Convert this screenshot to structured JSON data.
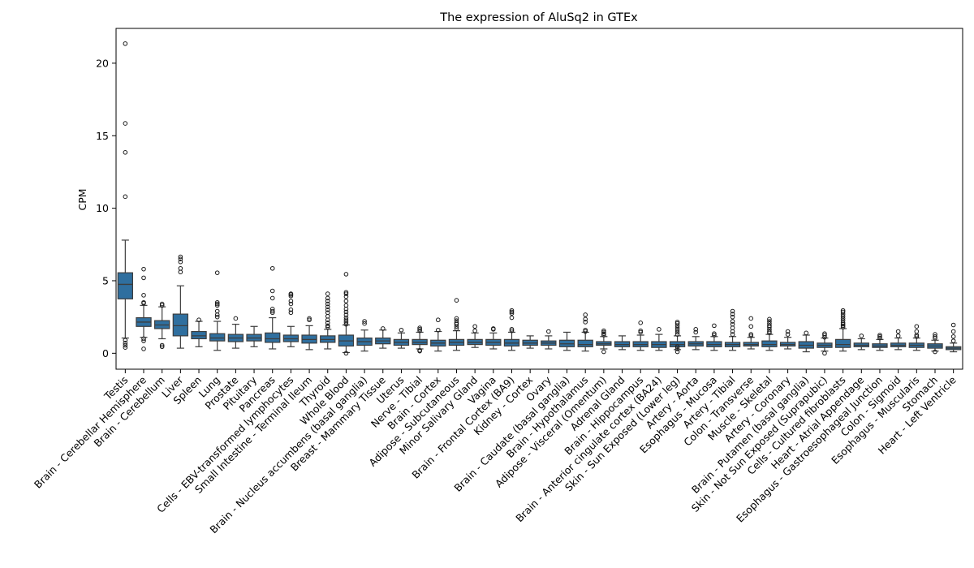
{
  "chart_data": {
    "type": "box",
    "title": "The expression of AluSq2 in GTEx",
    "xlabel": "",
    "ylabel": "CPM",
    "ylim": [
      -1.1,
      22.4
    ],
    "yticks": [
      0,
      5,
      10,
      15,
      20
    ],
    "grid": false,
    "box_color": "#2f6f9f",
    "categories": [
      "Testis",
      "Brain - Cerebellar Hemisphere",
      "Brain - Cerebellum",
      "Liver",
      "Spleen",
      "Lung",
      "Prostate",
      "Pituitary",
      "Pancreas",
      "Cells - EBV-transformed lymphocytes",
      "Small Intestine - Terminal Ileum",
      "Thyroid",
      "Whole Blood",
      "Brain - Nucleus accumbens (basal ganglia)",
      "Breast - Mammary Tissue",
      "Uterus",
      "Nerve - Tibial",
      "Brain - Cortex",
      "Adipose - Subcutaneous",
      "Minor Salivary Gland",
      "Vagina",
      "Brain - Frontal Cortex (BA9)",
      "Kidney - Cortex",
      "Ovary",
      "Brain - Caudate (basal ganglia)",
      "Brain - Hypothalamus",
      "Adipose - Visceral (Omentum)",
      "Adrenal Gland",
      "Brain - Hippocampus",
      "Brain - Anterior cingulate cortex (BA24)",
      "Skin - Sun Exposed (Lower leg)",
      "Artery - Aorta",
      "Esophagus - Mucosa",
      "Artery - Tibial",
      "Colon - Transverse",
      "Muscle - Skeletal",
      "Artery - Coronary",
      "Brain - Putamen (basal ganglia)",
      "Skin - Not Sun Exposed (Suprapubic)",
      "Cells - Cultured fibroblasts",
      "Heart - Atrial Appendage",
      "Esophagus - Gastroesophageal Junction",
      "Colon - Sigmoid",
      "Esophagus - Muscularis",
      "Stomach",
      "Heart - Left Ventricle"
    ],
    "boxes": [
      {
        "whisker_low": 1.05,
        "q1": 3.75,
        "median": 4.75,
        "q3": 5.55,
        "whisker_high": 7.8,
        "outliers": [
          21.35,
          15.85,
          13.85,
          10.8,
          0.9,
          0.7,
          0.55,
          0.4
        ]
      },
      {
        "whisker_low": 1.1,
        "q1": 1.85,
        "median": 2.15,
        "q3": 2.45,
        "whisker_high": 3.3,
        "outliers": [
          5.8,
          5.2,
          4.0,
          3.5,
          3.45,
          1.0,
          0.85,
          0.3
        ]
      },
      {
        "whisker_low": 1.0,
        "q1": 1.7,
        "median": 1.95,
        "q3": 2.25,
        "whisker_high": 3.2,
        "outliers": [
          3.4,
          3.3,
          0.55,
          0.45
        ]
      },
      {
        "whisker_low": 0.35,
        "q1": 1.2,
        "median": 1.9,
        "q3": 2.7,
        "whisker_high": 4.65,
        "outliers": [
          6.65,
          6.5,
          6.3,
          5.85,
          5.6
        ]
      },
      {
        "whisker_low": 0.45,
        "q1": 1.0,
        "median": 1.2,
        "q3": 1.5,
        "whisker_high": 2.2,
        "outliers": [
          2.3
        ]
      },
      {
        "whisker_low": 0.2,
        "q1": 0.85,
        "median": 1.05,
        "q3": 1.35,
        "whisker_high": 2.2,
        "outliers": [
          5.55,
          3.5,
          3.4,
          3.3,
          2.9,
          2.65,
          2.5
        ]
      },
      {
        "whisker_low": 0.35,
        "q1": 0.8,
        "median": 1.05,
        "q3": 1.3,
        "whisker_high": 2.0,
        "outliers": [
          2.4
        ]
      },
      {
        "whisker_low": 0.45,
        "q1": 0.85,
        "median": 1.05,
        "q3": 1.3,
        "whisker_high": 1.85,
        "outliers": []
      },
      {
        "whisker_low": 0.3,
        "q1": 0.75,
        "median": 1.0,
        "q3": 1.4,
        "whisker_high": 2.45,
        "outliers": [
          5.85,
          4.3,
          3.8,
          3.05,
          2.9,
          2.8
        ]
      },
      {
        "whisker_low": 0.45,
        "q1": 0.8,
        "median": 1.0,
        "q3": 1.25,
        "whisker_high": 1.85,
        "outliers": [
          4.1,
          4.05,
          3.95,
          3.6,
          3.4,
          3.0,
          2.8
        ]
      },
      {
        "whisker_low": 0.25,
        "q1": 0.7,
        "median": 0.95,
        "q3": 1.25,
        "whisker_high": 1.9,
        "outliers": [
          2.4,
          2.3
        ]
      },
      {
        "whisker_low": 0.3,
        "q1": 0.75,
        "median": 0.95,
        "q3": 1.2,
        "whisker_high": 1.65,
        "outliers": [
          4.1,
          3.8,
          3.6,
          3.4,
          3.2,
          3.0,
          2.8,
          2.55,
          2.3,
          2.1,
          1.9,
          1.8
        ]
      },
      {
        "whisker_low": 0.05,
        "q1": 0.5,
        "median": 0.85,
        "q3": 1.25,
        "whisker_high": 1.95,
        "outliers": [
          5.45,
          4.2,
          4.1,
          3.9,
          3.6,
          3.3,
          3.05,
          2.85,
          2.65,
          2.45,
          2.3,
          2.15,
          2.0,
          0.0
        ]
      },
      {
        "whisker_low": 0.15,
        "q1": 0.55,
        "median": 0.8,
        "q3": 1.05,
        "whisker_high": 1.6,
        "outliers": [
          2.2,
          2.05
        ]
      },
      {
        "whisker_low": 0.35,
        "q1": 0.65,
        "median": 0.85,
        "q3": 1.05,
        "whisker_high": 1.6,
        "outliers": [
          1.7
        ]
      },
      {
        "whisker_low": 0.35,
        "q1": 0.55,
        "median": 0.75,
        "q3": 0.95,
        "whisker_high": 1.4,
        "outliers": [
          1.6
        ]
      },
      {
        "whisker_low": 0.3,
        "q1": 0.6,
        "median": 0.75,
        "q3": 0.95,
        "whisker_high": 1.45,
        "outliers": [
          1.75,
          1.65,
          1.55,
          0.2,
          0.15
        ]
      },
      {
        "whisker_low": 0.15,
        "q1": 0.5,
        "median": 0.7,
        "q3": 0.9,
        "whisker_high": 1.5,
        "outliers": [
          2.3,
          1.6
        ]
      },
      {
        "whisker_low": 0.2,
        "q1": 0.55,
        "median": 0.75,
        "q3": 0.95,
        "whisker_high": 1.55,
        "outliers": [
          3.65,
          2.4,
          2.25,
          2.1,
          2.0,
          1.85,
          1.7
        ]
      },
      {
        "whisker_low": 0.4,
        "q1": 0.6,
        "median": 0.75,
        "q3": 0.95,
        "whisker_high": 1.4,
        "outliers": [
          1.85,
          1.55
        ]
      },
      {
        "whisker_low": 0.3,
        "q1": 0.55,
        "median": 0.75,
        "q3": 0.95,
        "whisker_high": 1.4,
        "outliers": [
          1.7,
          1.65
        ]
      },
      {
        "whisker_low": 0.2,
        "q1": 0.5,
        "median": 0.7,
        "q3": 0.95,
        "whisker_high": 1.45,
        "outliers": [
          2.95,
          2.85,
          2.75,
          2.45,
          1.65,
          1.55
        ]
      },
      {
        "whisker_low": 0.35,
        "q1": 0.55,
        "median": 0.7,
        "q3": 0.9,
        "whisker_high": 1.2,
        "outliers": []
      },
      {
        "whisker_low": 0.3,
        "q1": 0.55,
        "median": 0.7,
        "q3": 0.85,
        "whisker_high": 1.2,
        "outliers": [
          1.5
        ]
      },
      {
        "whisker_low": 0.2,
        "q1": 0.45,
        "median": 0.65,
        "q3": 0.9,
        "whisker_high": 1.45,
        "outliers": []
      },
      {
        "whisker_low": 0.15,
        "q1": 0.45,
        "median": 0.6,
        "q3": 0.9,
        "whisker_high": 1.45,
        "outliers": [
          2.65,
          2.35,
          2.15,
          1.6,
          1.5
        ]
      },
      {
        "whisker_low": 0.3,
        "q1": 0.55,
        "median": 0.65,
        "q3": 0.8,
        "whisker_high": 1.15,
        "outliers": [
          1.55,
          1.45,
          1.35,
          1.25,
          0.1
        ]
      },
      {
        "whisker_low": 0.25,
        "q1": 0.45,
        "median": 0.6,
        "q3": 0.8,
        "whisker_high": 1.2,
        "outliers": []
      },
      {
        "whisker_low": 0.2,
        "q1": 0.45,
        "median": 0.6,
        "q3": 0.8,
        "whisker_high": 1.25,
        "outliers": [
          2.1,
          1.55,
          1.45
        ]
      },
      {
        "whisker_low": 0.2,
        "q1": 0.4,
        "median": 0.6,
        "q3": 0.8,
        "whisker_high": 1.3,
        "outliers": [
          1.65
        ]
      },
      {
        "whisker_low": 0.25,
        "q1": 0.45,
        "median": 0.6,
        "q3": 0.8,
        "whisker_high": 1.2,
        "outliers": [
          2.15,
          2.05,
          1.9,
          1.75,
          1.6,
          1.45,
          1.3,
          0.45,
          0.3,
          0.1
        ]
      },
      {
        "whisker_low": 0.25,
        "q1": 0.5,
        "median": 0.65,
        "q3": 0.8,
        "whisker_high": 1.15,
        "outliers": [
          1.65,
          1.45
        ]
      },
      {
        "whisker_low": 0.2,
        "q1": 0.45,
        "median": 0.6,
        "q3": 0.8,
        "whisker_high": 1.15,
        "outliers": [
          1.9,
          1.35,
          1.25
        ]
      },
      {
        "whisker_low": 0.2,
        "q1": 0.45,
        "median": 0.6,
        "q3": 0.75,
        "whisker_high": 1.15,
        "outliers": [
          2.9,
          2.7,
          2.5,
          2.2,
          2.0,
          1.75,
          1.5,
          1.3
        ]
      },
      {
        "whisker_low": 0.3,
        "q1": 0.5,
        "median": 0.6,
        "q3": 0.75,
        "whisker_high": 1.1,
        "outliers": [
          2.4,
          1.85,
          1.3,
          1.2
        ]
      },
      {
        "whisker_low": 0.2,
        "q1": 0.45,
        "median": 0.6,
        "q3": 0.85,
        "whisker_high": 1.3,
        "outliers": [
          2.35,
          2.2,
          2.05,
          1.9,
          1.8,
          1.65,
          1.5,
          1.4
        ]
      },
      {
        "whisker_low": 0.3,
        "q1": 0.5,
        "median": 0.6,
        "q3": 0.75,
        "whisker_high": 1.1,
        "outliers": [
          1.5,
          1.3
        ]
      },
      {
        "whisker_low": 0.1,
        "q1": 0.35,
        "median": 0.55,
        "q3": 0.8,
        "whisker_high": 1.25,
        "outliers": [
          1.4
        ]
      },
      {
        "whisker_low": 0.15,
        "q1": 0.4,
        "median": 0.55,
        "q3": 0.7,
        "whisker_high": 1.05,
        "outliers": [
          1.35,
          1.25,
          1.1,
          0.0
        ]
      },
      {
        "whisker_low": 0.15,
        "q1": 0.4,
        "median": 0.6,
        "q3": 0.95,
        "whisker_high": 1.7,
        "outliers": [
          2.95,
          2.85,
          2.7,
          2.55,
          2.4,
          2.25,
          2.1,
          2.0,
          1.9,
          1.8
        ]
      },
      {
        "whisker_low": 0.25,
        "q1": 0.45,
        "median": 0.55,
        "q3": 0.7,
        "whisker_high": 1.0,
        "outliers": [
          1.2
        ]
      },
      {
        "whisker_low": 0.2,
        "q1": 0.4,
        "median": 0.5,
        "q3": 0.65,
        "whisker_high": 0.95,
        "outliers": [
          1.25,
          1.15,
          1.05
        ]
      },
      {
        "whisker_low": 0.25,
        "q1": 0.45,
        "median": 0.55,
        "q3": 0.7,
        "whisker_high": 1.05,
        "outliers": [
          1.5,
          1.2
        ]
      },
      {
        "whisker_low": 0.2,
        "q1": 0.4,
        "median": 0.55,
        "q3": 0.7,
        "whisker_high": 1.05,
        "outliers": [
          1.85,
          1.5,
          1.25,
          1.15
        ]
      },
      {
        "whisker_low": 0.15,
        "q1": 0.35,
        "median": 0.5,
        "q3": 0.65,
        "whisker_high": 0.9,
        "outliers": [
          1.3,
          1.15,
          1.05,
          0.1
        ]
      },
      {
        "whisker_low": 0.1,
        "q1": 0.25,
        "median": 0.35,
        "q3": 0.45,
        "whisker_high": 0.7,
        "outliers": [
          1.95,
          1.5,
          1.15,
          0.85
        ]
      }
    ]
  }
}
